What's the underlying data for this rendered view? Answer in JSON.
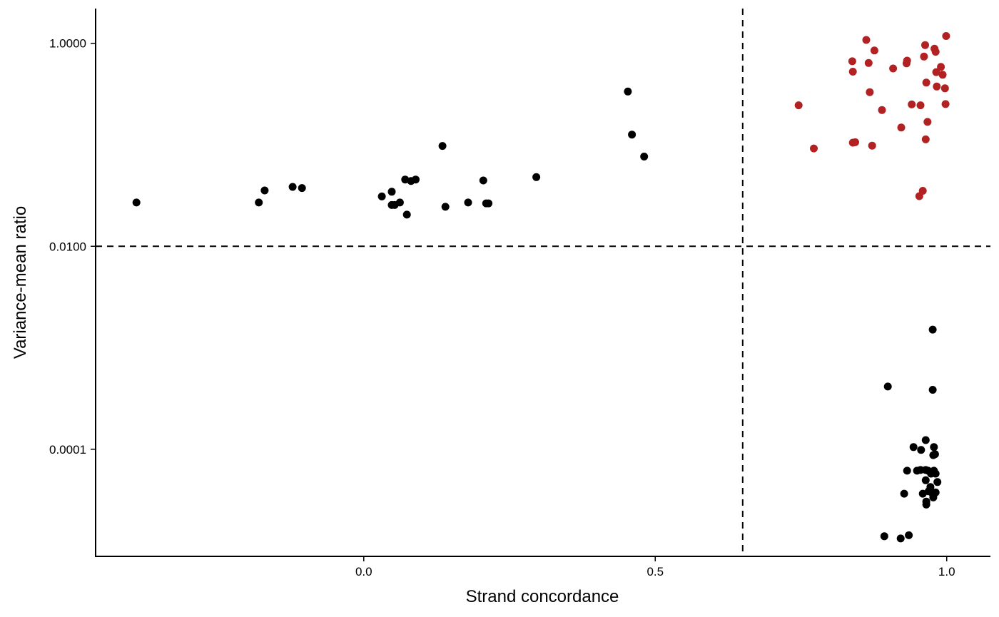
{
  "chart_data": {
    "type": "scatter",
    "title": "",
    "xlabel": "Strand concordance",
    "ylabel": "Variance-mean ratio",
    "y_scale": "log10",
    "xlim": [
      -0.46,
      1.075
    ],
    "ylim": [
      8.8e-06,
      2.2
    ],
    "x_ticks": [
      {
        "value": 0.0,
        "label": "0.0"
      },
      {
        "value": 0.5,
        "label": "0.5"
      },
      {
        "value": 1.0,
        "label": "1.0"
      }
    ],
    "y_ticks": [
      {
        "value": 1.0,
        "label": "1.0000"
      },
      {
        "value": 0.01,
        "label": "0.0100"
      },
      {
        "value": 0.0001,
        "label": "0.0001"
      }
    ],
    "reference_lines": {
      "x": 0.65,
      "y": 0.01,
      "style": "dashed",
      "color": "#000000"
    },
    "grid": false,
    "legend": "none",
    "series": [
      {
        "color": "#000000",
        "points": [
          [
            -0.39,
            0.027
          ],
          [
            -0.18,
            0.027
          ],
          [
            -0.17,
            0.0355
          ],
          [
            -0.122,
            0.0385
          ],
          [
            -0.106,
            0.0375
          ],
          [
            0.031,
            0.031
          ],
          [
            0.048,
            0.0345
          ],
          [
            0.048,
            0.0255
          ],
          [
            0.053,
            0.0255
          ],
          [
            0.062,
            0.027
          ],
          [
            0.071,
            0.0455
          ],
          [
            0.074,
            0.0205
          ],
          [
            0.081,
            0.044
          ],
          [
            0.089,
            0.0455
          ],
          [
            0.135,
            0.0975
          ],
          [
            0.14,
            0.0245
          ],
          [
            0.179,
            0.027
          ],
          [
            0.205,
            0.0445
          ],
          [
            0.21,
            0.0265
          ],
          [
            0.214,
            0.0265
          ],
          [
            0.296,
            0.048
          ],
          [
            0.453,
            0.335
          ],
          [
            0.46,
            0.126
          ],
          [
            0.481,
            0.0765
          ],
          [
            0.976,
            0.00151
          ],
          [
            0.899,
            0.000415
          ],
          [
            0.976,
            0.000385
          ],
          [
            0.964,
            0.000123
          ],
          [
            0.943,
            0.000105
          ],
          [
            0.978,
            0.000105
          ],
          [
            0.956,
            9.85e-05
          ],
          [
            0.98,
            8.95e-05
          ],
          [
            0.977,
            8.75e-05
          ],
          [
            0.932,
            6.15e-05
          ],
          [
            0.949,
            6.15e-05
          ],
          [
            0.955,
            6.25e-05
          ],
          [
            0.964,
            6.25e-05
          ],
          [
            0.968,
            6.15e-05
          ],
          [
            0.978,
            6.15e-05
          ],
          [
            0.973,
            5.75e-05
          ],
          [
            0.981,
            5.75e-05
          ],
          [
            0.964,
            4.95e-05
          ],
          [
            0.984,
            4.75e-05
          ],
          [
            0.972,
            4.25e-05
          ],
          [
            0.927,
            3.65e-05
          ],
          [
            0.959,
            3.65e-05
          ],
          [
            0.969,
            3.85e-05
          ],
          [
            0.976,
            3.65e-05
          ],
          [
            0.981,
            3.75e-05
          ],
          [
            0.977,
            3.35e-05
          ],
          [
            0.965,
            3.05e-05
          ],
          [
            0.965,
            2.85e-05
          ],
          [
            0.893,
            1.39e-05
          ],
          [
            0.921,
            1.32e-05
          ],
          [
            0.935,
            1.42e-05
          ]
        ]
      },
      {
        "color": "#B22222",
        "points": [
          [
            0.746,
            0.245
          ],
          [
            0.772,
            0.092
          ],
          [
            0.839,
            0.105
          ],
          [
            0.843,
            0.106
          ],
          [
            0.838,
            0.665
          ],
          [
            0.839,
            0.525
          ],
          [
            0.862,
            1.08
          ],
          [
            0.866,
            0.64
          ],
          [
            0.868,
            0.33
          ],
          [
            0.872,
            0.098
          ],
          [
            0.876,
            0.85
          ],
          [
            0.889,
            0.22
          ],
          [
            0.908,
            0.565
          ],
          [
            0.922,
            0.148
          ],
          [
            0.931,
            0.635
          ],
          [
            0.932,
            0.675
          ],
          [
            0.94,
            0.25
          ],
          [
            0.955,
            0.245
          ],
          [
            0.959,
            0.0352
          ],
          [
            0.953,
            0.0312
          ],
          [
            0.961,
            0.74
          ],
          [
            0.963,
            0.96
          ],
          [
            0.964,
            0.113
          ],
          [
            0.965,
            0.41
          ],
          [
            0.967,
            0.168
          ],
          [
            0.979,
            0.885
          ],
          [
            0.981,
            0.825
          ],
          [
            0.982,
            0.52
          ],
          [
            0.983,
            0.375
          ],
          [
            0.99,
            0.585
          ],
          [
            0.993,
            0.49
          ],
          [
            0.997,
            0.36
          ],
          [
            0.998,
            0.252
          ],
          [
            0.999,
            1.18
          ]
        ]
      }
    ]
  }
}
